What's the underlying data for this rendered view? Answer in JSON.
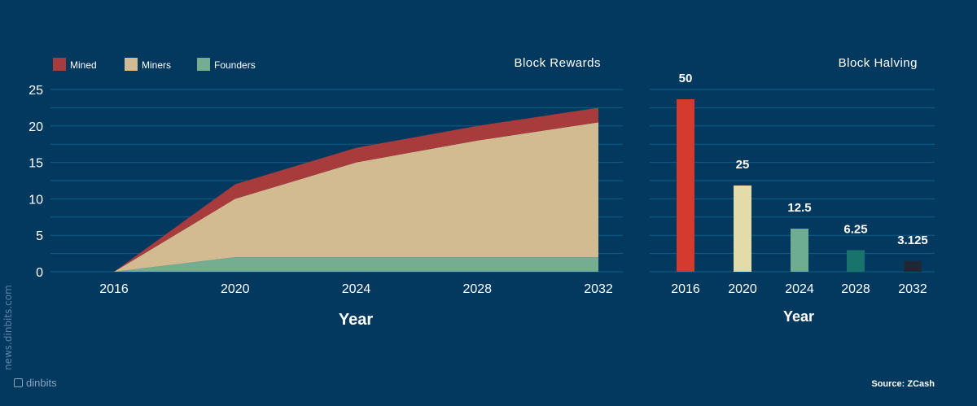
{
  "colors": {
    "background": "#03385f",
    "gridline": "#0f5f86",
    "mined": "#a83c3c",
    "miners": "#d2bb90",
    "founders": "#75ad93",
    "halving_bars": [
      "#d43b2e",
      "#e3dca8",
      "#6fad93",
      "#18736d",
      "#1f2834"
    ]
  },
  "watermark": {
    "vertical_text": "news.dinbits.com",
    "brand": "dinbits",
    "brand_icon": "dinbits-logo-icon"
  },
  "source": "Source: ZCash",
  "chart_data": [
    {
      "type": "area",
      "title": "Block Rewards",
      "xlabel": "Year",
      "ylabel": "",
      "x": [
        2016,
        2020,
        2024,
        2028,
        2032
      ],
      "x_ticks": [
        "2016",
        "2020",
        "2024",
        "2028",
        "2032"
      ],
      "ylim": [
        0,
        25
      ],
      "y_ticks": [
        "0",
        "5",
        "10",
        "15",
        "20",
        "25"
      ],
      "stacked": true,
      "grid": true,
      "legend_position": "top-left",
      "series": [
        {
          "name": "Founders",
          "values": [
            0,
            2,
            2,
            2,
            2
          ]
        },
        {
          "name": "Miners",
          "values": [
            0,
            8,
            13,
            16,
            18.5
          ]
        },
        {
          "name": "Mined",
          "values": [
            0,
            2,
            2,
            2,
            2
          ]
        }
      ],
      "legend": [
        "Mined",
        "Miners",
        "Founders"
      ]
    },
    {
      "type": "bar",
      "title": "Block Halving",
      "xlabel": "Year",
      "ylabel": "",
      "categories": [
        "2016",
        "2020",
        "2024",
        "2028",
        "2032"
      ],
      "values": [
        50,
        25,
        12.5,
        6.25,
        3.125
      ],
      "data_labels": [
        "50",
        "25",
        "12.5",
        "6.25",
        "3.125"
      ],
      "ylim": [
        0,
        50
      ],
      "grid": true
    }
  ]
}
